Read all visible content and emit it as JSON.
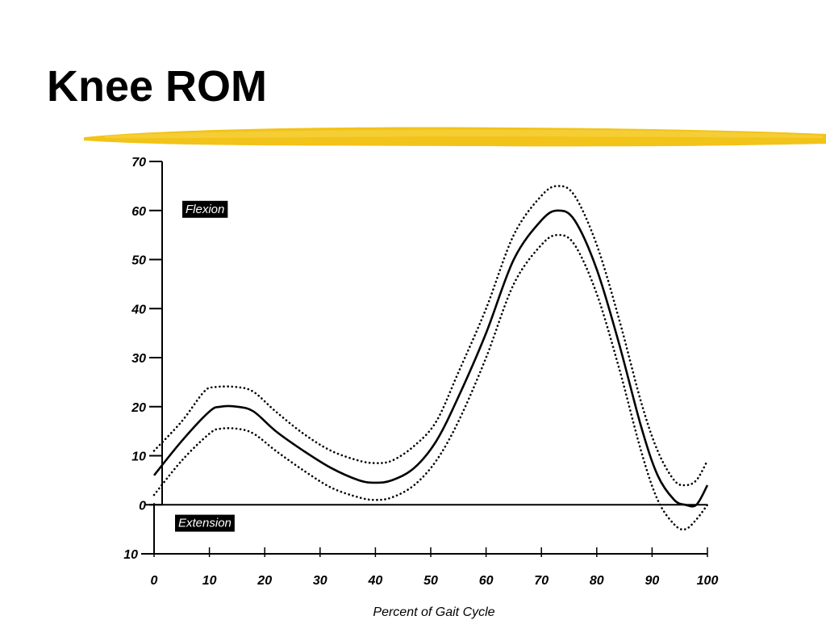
{
  "slide": {
    "title": "Knee ROM"
  },
  "colors": {
    "highlight": "#f2c318",
    "highlight_light": "#f7d64f",
    "ink": "#000000",
    "background": "#ffffff"
  },
  "chart_data": {
    "type": "line",
    "title": "",
    "xlabel": "Percent of Gait Cycle",
    "ylabel": "",
    "xlim": [
      0,
      100
    ],
    "ylim": [
      -10,
      70
    ],
    "x_ticks": [
      0,
      10,
      20,
      30,
      40,
      50,
      60,
      70,
      80,
      90,
      100
    ],
    "y_ticks": [
      70,
      60,
      50,
      40,
      30,
      20,
      10,
      0,
      -10
    ],
    "y_tick_labels": [
      "70",
      "60",
      "50",
      "40",
      "30",
      "20",
      "10",
      "0",
      "10"
    ],
    "annotations": {
      "upper_region": "Flexion",
      "lower_region": "Extension"
    },
    "grid": false,
    "legend": "none",
    "series": [
      {
        "style": "solid",
        "x": [
          0,
          5,
          10,
          12,
          15,
          18,
          22,
          27,
          32,
          37,
          40,
          43,
          47,
          51,
          55,
          60,
          65,
          70,
          73,
          76,
          80,
          84,
          88,
          91,
          94,
          96,
          98,
          100
        ],
        "y": [
          6,
          13,
          19,
          20,
          20,
          19,
          15,
          11,
          7.5,
          5,
          4.5,
          5,
          7.5,
          13,
          22,
          35,
          50,
          58,
          60,
          58,
          48,
          33,
          16,
          6,
          1,
          0,
          0,
          4
        ]
      },
      {
        "style": "dotted",
        "x": [
          0,
          5,
          9,
          11,
          15,
          18,
          22,
          27,
          32,
          37,
          40,
          43,
          47,
          51,
          55,
          60,
          65,
          70,
          73,
          76,
          80,
          84,
          88,
          91,
          94,
          96,
          98,
          100
        ],
        "y": [
          11,
          17,
          23,
          24,
          24,
          23,
          19,
          14.5,
          11,
          9,
          8.5,
          9,
          12,
          17,
          27,
          40,
          55,
          63,
          65,
          63,
          53,
          38,
          21,
          11,
          5,
          4,
          5,
          9
        ]
      },
      {
        "style": "dotted",
        "x": [
          0,
          5,
          10,
          12,
          15,
          18,
          22,
          27,
          32,
          37,
          40,
          43,
          47,
          51,
          55,
          60,
          65,
          70,
          73,
          76,
          80,
          84,
          88,
          91,
          94,
          96,
          98,
          100
        ],
        "y": [
          2,
          9,
          14.5,
          15.5,
          15.5,
          14.5,
          11,
          7,
          3.5,
          1.5,
          1,
          1.5,
          4,
          9,
          17,
          30,
          45,
          53,
          55,
          53,
          43,
          28,
          11,
          1,
          -4,
          -5,
          -3,
          0
        ]
      }
    ]
  }
}
